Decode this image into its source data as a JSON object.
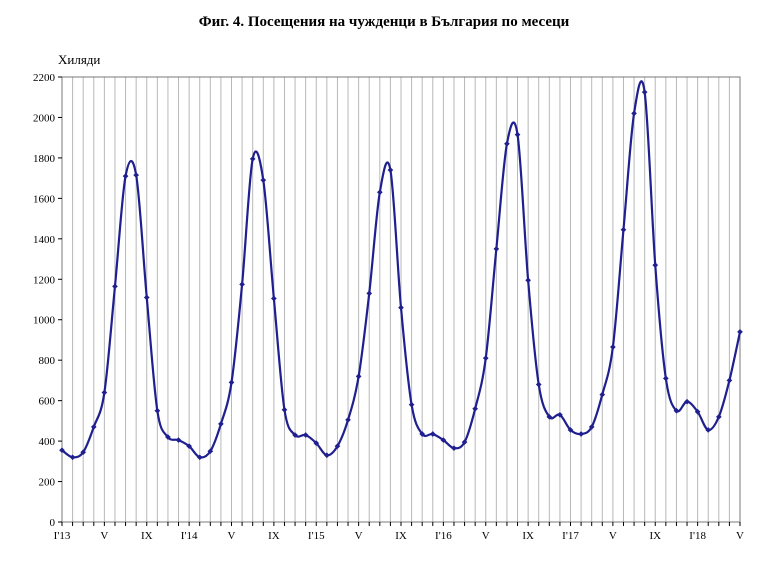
{
  "chart_data": {
    "type": "line",
    "title": "Фиг. 4. Посещения на чужденци в България по месеци",
    "ylabel": "Хиляди",
    "xlabel": "",
    "ylim": [
      0,
      2200
    ],
    "yticks": [
      0,
      200,
      400,
      600,
      800,
      1000,
      1200,
      1400,
      1600,
      1800,
      2000,
      2200
    ],
    "x_tick_labels": [
      {
        "index": 0,
        "label": "I'13"
      },
      {
        "index": 4,
        "label": "V"
      },
      {
        "index": 8,
        "label": "IX"
      },
      {
        "index": 12,
        "label": "I'14"
      },
      {
        "index": 16,
        "label": "V"
      },
      {
        "index": 20,
        "label": "IX"
      },
      {
        "index": 24,
        "label": "I'15"
      },
      {
        "index": 28,
        "label": "V"
      },
      {
        "index": 32,
        "label": "IX"
      },
      {
        "index": 36,
        "label": "I'16"
      },
      {
        "index": 40,
        "label": "V"
      },
      {
        "index": 44,
        "label": "IX"
      },
      {
        "index": 48,
        "label": "I'17"
      },
      {
        "index": 52,
        "label": "V"
      },
      {
        "index": 56,
        "label": "IX"
      },
      {
        "index": 60,
        "label": "I'18"
      },
      {
        "index": 64,
        "label": "V"
      }
    ],
    "grid": "vertical",
    "series": [
      {
        "name": "",
        "color": "#1f1f8f",
        "values": [
          355,
          320,
          345,
          470,
          640,
          1165,
          1710,
          1715,
          1110,
          550,
          420,
          405,
          375,
          320,
          350,
          485,
          690,
          1175,
          1795,
          1690,
          1105,
          555,
          430,
          430,
          390,
          330,
          375,
          505,
          720,
          1130,
          1630,
          1740,
          1060,
          580,
          435,
          435,
          405,
          365,
          395,
          560,
          810,
          1350,
          1870,
          1915,
          1195,
          680,
          520,
          530,
          455,
          435,
          470,
          630,
          865,
          1445,
          2020,
          2125,
          1270,
          710,
          550,
          595,
          545,
          455,
          520,
          700,
          940
        ]
      }
    ]
  }
}
